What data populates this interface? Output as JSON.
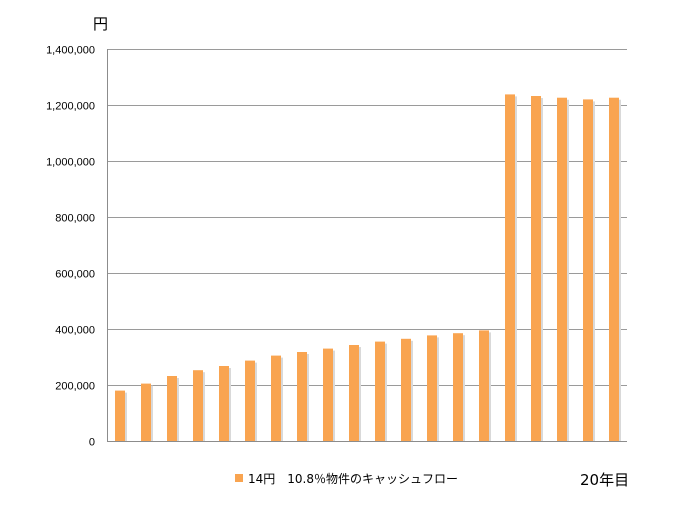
{
  "chart_data": {
    "type": "bar",
    "ylabel": "円",
    "ylim": [
      0,
      1400000
    ],
    "y_ticks": [
      0,
      200000,
      400000,
      600000,
      800000,
      1000000,
      1200000,
      1400000
    ],
    "y_tick_labels": [
      "0",
      "200,000",
      "400,000",
      "600,000",
      "800,000",
      "1,000,000",
      "1,200,000",
      "1,400,000"
    ],
    "grid": true,
    "legend_position": "bottom",
    "series": [
      {
        "name": "14円　10.8％物件のキャッシュフロー",
        "color": "#F9A450",
        "values": [
          180000,
          205000,
          232000,
          253000,
          268000,
          287000,
          305000,
          318000,
          330000,
          343000,
          355000,
          365000,
          377000,
          385000,
          395000,
          1238000,
          1232000,
          1226000,
          1220000,
          1226000
        ]
      }
    ],
    "corner_label": "20年目"
  }
}
